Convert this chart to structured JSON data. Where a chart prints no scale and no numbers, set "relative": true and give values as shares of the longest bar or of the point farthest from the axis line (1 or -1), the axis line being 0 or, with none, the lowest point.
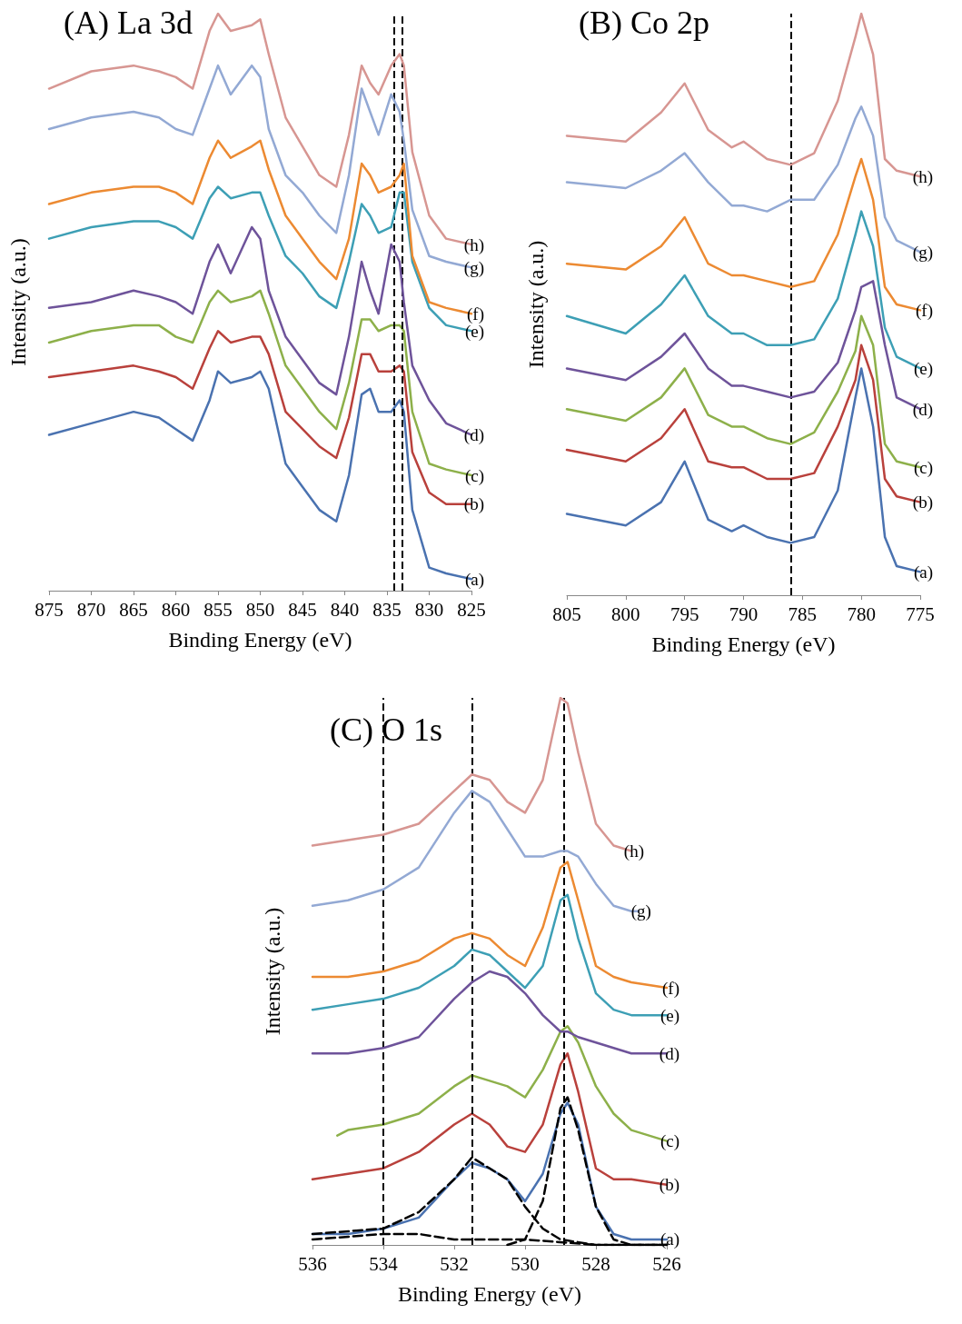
{
  "chart_data": [
    {
      "type": "line",
      "title": "(A) La 3d",
      "xlabel": "Binding Energy (eV)",
      "ylabel": "Intensity (a.u.)",
      "relative": true,
      "tick_labels": "x",
      "grid": false,
      "legend": false,
      "xlim": [
        875,
        825
      ],
      "xticks": [
        875,
        870,
        865,
        860,
        855,
        850,
        845,
        840,
        835,
        830,
        825
      ],
      "x": [
        875,
        870,
        865,
        862,
        860,
        858,
        856,
        855,
        853.5,
        851,
        850,
        849,
        847,
        845,
        843,
        841,
        839.5,
        838,
        837,
        836,
        834.5,
        833.5,
        833,
        832,
        830,
        828,
        825
      ],
      "ref_lines": [
        {
          "axis": "x",
          "value": 833.2,
          "color": "#000000",
          "line_style": "dashed"
        },
        {
          "axis": "x",
          "value": 834.2,
          "color": "#000000",
          "line_style": "dashed"
        }
      ],
      "series": [
        {
          "name": "(a)",
          "color": "#4a72b0",
          "values": [
            0.27,
            0.29,
            0.31,
            0.3,
            0.28,
            0.26,
            0.33,
            0.38,
            0.36,
            0.37,
            0.38,
            0.35,
            0.22,
            0.18,
            0.14,
            0.12,
            0.2,
            0.34,
            0.35,
            0.31,
            0.31,
            0.33,
            0.31,
            0.14,
            0.04,
            0.03,
            0.02
          ]
        },
        {
          "name": "(b)",
          "color": "#b9413c",
          "values": [
            0.37,
            0.38,
            0.39,
            0.38,
            0.37,
            0.35,
            0.42,
            0.45,
            0.43,
            0.44,
            0.44,
            0.41,
            0.31,
            0.28,
            0.25,
            0.23,
            0.3,
            0.41,
            0.41,
            0.38,
            0.38,
            0.39,
            0.38,
            0.24,
            0.17,
            0.15,
            0.15
          ]
        },
        {
          "name": "(c)",
          "color": "#8db04a",
          "values": [
            0.43,
            0.45,
            0.46,
            0.46,
            0.44,
            0.43,
            0.5,
            0.52,
            0.5,
            0.51,
            0.52,
            0.48,
            0.39,
            0.35,
            0.31,
            0.28,
            0.36,
            0.47,
            0.47,
            0.45,
            0.46,
            0.46,
            0.45,
            0.31,
            0.22,
            0.21,
            0.2
          ]
        },
        {
          "name": "(d)",
          "color": "#6e539a",
          "values": [
            0.49,
            0.5,
            0.52,
            0.51,
            0.5,
            0.48,
            0.57,
            0.6,
            0.55,
            0.63,
            0.61,
            0.52,
            0.44,
            0.4,
            0.36,
            0.34,
            0.44,
            0.57,
            0.52,
            0.48,
            0.6,
            0.57,
            0.5,
            0.39,
            0.33,
            0.29,
            0.27
          ]
        },
        {
          "name": "(e)",
          "color": "#3d9fb5",
          "values": [
            0.61,
            0.63,
            0.64,
            0.64,
            0.63,
            0.61,
            0.68,
            0.7,
            0.68,
            0.69,
            0.69,
            0.65,
            0.58,
            0.55,
            0.51,
            0.49,
            0.57,
            0.67,
            0.65,
            0.62,
            0.63,
            0.69,
            0.69,
            0.57,
            0.49,
            0.46,
            0.45
          ]
        },
        {
          "name": "(f)",
          "color": "#ec8a32",
          "values": [
            0.67,
            0.69,
            0.7,
            0.7,
            0.69,
            0.67,
            0.75,
            0.78,
            0.75,
            0.77,
            0.78,
            0.73,
            0.65,
            0.61,
            0.57,
            0.54,
            0.61,
            0.74,
            0.72,
            0.69,
            0.7,
            0.72,
            0.74,
            0.58,
            0.5,
            0.49,
            0.48
          ]
        },
        {
          "name": "(g)",
          "color": "#93a9d4",
          "values": [
            0.8,
            0.82,
            0.83,
            0.82,
            0.8,
            0.79,
            0.87,
            0.91,
            0.86,
            0.91,
            0.89,
            0.8,
            0.72,
            0.69,
            0.65,
            0.62,
            0.72,
            0.87,
            0.83,
            0.79,
            0.86,
            0.83,
            0.78,
            0.66,
            0.58,
            0.57,
            0.56
          ]
        },
        {
          "name": "(h)",
          "color": "#d79692",
          "values": [
            0.87,
            0.9,
            0.91,
            0.9,
            0.89,
            0.87,
            0.97,
            1.0,
            0.97,
            0.98,
            0.99,
            0.93,
            0.82,
            0.77,
            0.72,
            0.7,
            0.79,
            0.91,
            0.88,
            0.86,
            0.91,
            0.93,
            0.91,
            0.76,
            0.65,
            0.61,
            0.6
          ]
        }
      ]
    },
    {
      "type": "line",
      "title": "(B) Co 2p",
      "xlabel": "Binding Energy (eV)",
      "ylabel": "Intensity (a.u.)",
      "relative": true,
      "tick_labels": "x",
      "grid": false,
      "legend": false,
      "xlim": [
        805,
        775
      ],
      "xticks": [
        805,
        800,
        795,
        790,
        785,
        780,
        775
      ],
      "x": [
        805,
        800,
        797,
        795,
        793,
        791,
        790,
        788,
        786,
        784,
        782,
        780.5,
        780,
        779,
        778,
        777,
        775
      ],
      "ref_lines": [
        {
          "axis": "x",
          "value": 786,
          "color": "#000000",
          "line_style": "dashed"
        }
      ],
      "series": [
        {
          "name": "(a)",
          "color": "#4a72b0",
          "values": [
            0.14,
            0.12,
            0.16,
            0.23,
            0.13,
            0.11,
            0.12,
            0.1,
            0.09,
            0.1,
            0.18,
            0.34,
            0.39,
            0.29,
            0.1,
            0.05,
            0.04
          ]
        },
        {
          "name": "(b)",
          "color": "#b9413c",
          "values": [
            0.25,
            0.23,
            0.27,
            0.32,
            0.23,
            0.22,
            0.22,
            0.2,
            0.2,
            0.21,
            0.29,
            0.37,
            0.43,
            0.37,
            0.2,
            0.17,
            0.16
          ]
        },
        {
          "name": "(c)",
          "color": "#8db04a",
          "values": [
            0.32,
            0.3,
            0.34,
            0.39,
            0.31,
            0.29,
            0.29,
            0.27,
            0.26,
            0.28,
            0.35,
            0.42,
            0.48,
            0.43,
            0.26,
            0.23,
            0.22
          ]
        },
        {
          "name": "(d)",
          "color": "#6e539a",
          "values": [
            0.39,
            0.37,
            0.41,
            0.45,
            0.39,
            0.36,
            0.36,
            0.35,
            0.34,
            0.35,
            0.4,
            0.49,
            0.53,
            0.54,
            0.43,
            0.34,
            0.32
          ]
        },
        {
          "name": "(e)",
          "color": "#3d9fb5",
          "values": [
            0.48,
            0.45,
            0.5,
            0.55,
            0.48,
            0.45,
            0.45,
            0.43,
            0.43,
            0.44,
            0.51,
            0.62,
            0.66,
            0.6,
            0.46,
            0.41,
            0.39
          ]
        },
        {
          "name": "(f)",
          "color": "#ec8a32",
          "values": [
            0.57,
            0.56,
            0.6,
            0.65,
            0.57,
            0.55,
            0.55,
            0.54,
            0.53,
            0.54,
            0.62,
            0.72,
            0.75,
            0.68,
            0.53,
            0.5,
            0.49
          ]
        },
        {
          "name": "(g)",
          "color": "#93a9d4",
          "values": [
            0.71,
            0.7,
            0.73,
            0.76,
            0.71,
            0.67,
            0.67,
            0.66,
            0.68,
            0.68,
            0.74,
            0.82,
            0.84,
            0.79,
            0.65,
            0.61,
            0.59
          ]
        },
        {
          "name": "(h)",
          "color": "#d79692",
          "values": [
            0.79,
            0.78,
            0.83,
            0.88,
            0.8,
            0.77,
            0.78,
            0.75,
            0.74,
            0.76,
            0.85,
            0.96,
            1.0,
            0.93,
            0.75,
            0.73,
            0.72
          ]
        }
      ]
    },
    {
      "type": "line",
      "title": "(C) O 1s",
      "xlabel": "Binding Energy (eV)",
      "ylabel": "Intensity (a.u.)",
      "relative": true,
      "tick_labels": "x",
      "grid": false,
      "legend": false,
      "xlim": [
        536,
        526
      ],
      "xticks": [
        536,
        534,
        532,
        530,
        528,
        526
      ],
      "x": [
        536,
        535,
        534,
        533,
        532,
        531.5,
        531,
        530.5,
        530,
        529.5,
        529,
        528.8,
        528.5,
        528,
        527.5,
        527,
        526
      ],
      "ref_lines": [
        {
          "axis": "x",
          "value": 534,
          "color": "#000000",
          "line_style": "dashed"
        },
        {
          "axis": "x",
          "value": 531.5,
          "color": "#000000",
          "line_style": "dashed"
        },
        {
          "axis": "x",
          "value": 528.9,
          "color": "#000000",
          "line_style": "dashed"
        }
      ],
      "series": [
        {
          "name": "(a)",
          "color": "#4a72b0",
          "values": [
            0.02,
            0.02,
            0.03,
            0.05,
            0.12,
            0.15,
            0.14,
            0.12,
            0.08,
            0.13,
            0.24,
            0.26,
            0.22,
            0.07,
            0.02,
            0.01,
            0.01
          ]
        },
        {
          "name": "(b)",
          "color": "#b9413c",
          "values": [
            0.12,
            0.13,
            0.14,
            0.17,
            0.22,
            0.24,
            0.22,
            0.18,
            0.17,
            0.22,
            0.33,
            0.35,
            0.28,
            0.14,
            0.12,
            0.12,
            0.11
          ]
        },
        {
          "name": "(c)",
          "color": "#8db04a",
          "x": [
            535.3,
            535,
            534,
            533,
            532,
            531.5,
            531,
            530.5,
            530,
            529.5,
            529,
            528.8,
            528.5,
            528,
            527.5,
            527,
            526
          ],
          "values": [
            0.2,
            0.21,
            0.22,
            0.24,
            0.29,
            0.31,
            0.3,
            0.29,
            0.27,
            0.32,
            0.39,
            0.4,
            0.37,
            0.29,
            0.24,
            0.21,
            0.19
          ]
        },
        {
          "name": "(d)",
          "color": "#6e539a",
          "values": [
            0.35,
            0.35,
            0.36,
            0.38,
            0.45,
            0.48,
            0.5,
            0.49,
            0.46,
            0.42,
            0.39,
            0.39,
            0.38,
            0.37,
            0.36,
            0.35,
            0.35
          ]
        },
        {
          "name": "(e)",
          "color": "#3d9fb5",
          "values": [
            0.43,
            0.44,
            0.45,
            0.47,
            0.51,
            0.54,
            0.53,
            0.5,
            0.47,
            0.51,
            0.63,
            0.64,
            0.56,
            0.46,
            0.43,
            0.42,
            0.42
          ]
        },
        {
          "name": "(f)",
          "color": "#ec8a32",
          "values": [
            0.49,
            0.49,
            0.5,
            0.52,
            0.56,
            0.57,
            0.56,
            0.53,
            0.51,
            0.58,
            0.69,
            0.7,
            0.63,
            0.51,
            0.49,
            0.48,
            0.47
          ]
        },
        {
          "name": "(g)",
          "color": "#93a9d4",
          "x": [
            536,
            535,
            534,
            533,
            532,
            531.5,
            531,
            530.5,
            530,
            529.5,
            529,
            528.8,
            528.5,
            528,
            527.5,
            527,
            526.8
          ],
          "values": [
            0.62,
            0.63,
            0.65,
            0.69,
            0.79,
            0.83,
            0.81,
            0.76,
            0.71,
            0.71,
            0.72,
            0.72,
            0.71,
            0.66,
            0.62,
            0.61,
            0.61
          ]
        },
        {
          "name": "(h)",
          "color": "#d79692",
          "x": [
            536,
            535,
            534,
            533,
            532,
            531.5,
            531,
            530.5,
            530,
            529.5,
            529,
            528.8,
            528.5,
            528,
            527.5,
            527
          ],
          "values": [
            0.73,
            0.74,
            0.75,
            0.77,
            0.83,
            0.86,
            0.85,
            0.81,
            0.79,
            0.85,
            1.0,
            0.99,
            0.9,
            0.77,
            0.73,
            0.72
          ]
        },
        {
          "color": "#000000",
          "line_style": "dashed",
          "x": [
            536,
            534,
            533,
            532,
            531.5,
            531,
            530.5,
            530,
            529.5,
            529,
            528,
            526
          ],
          "values": [
            0.02,
            0.03,
            0.06,
            0.12,
            0.16,
            0.14,
            0.12,
            0.07,
            0.03,
            0.01,
            0,
            0
          ]
        },
        {
          "color": "#000000",
          "line_style": "dashed",
          "x": [
            530.5,
            530,
            529.5,
            529,
            528.8,
            528.5,
            528,
            527.5,
            527,
            526
          ],
          "values": [
            0,
            0.01,
            0.08,
            0.25,
            0.27,
            0.21,
            0.07,
            0.01,
            0,
            0
          ]
        },
        {
          "color": "#000000",
          "line_style": "dashed",
          "x": [
            536,
            534,
            533,
            532,
            530,
            528,
            526
          ],
          "values": [
            0.01,
            0.02,
            0.02,
            0.01,
            0.01,
            0,
            0
          ]
        }
      ]
    }
  ]
}
